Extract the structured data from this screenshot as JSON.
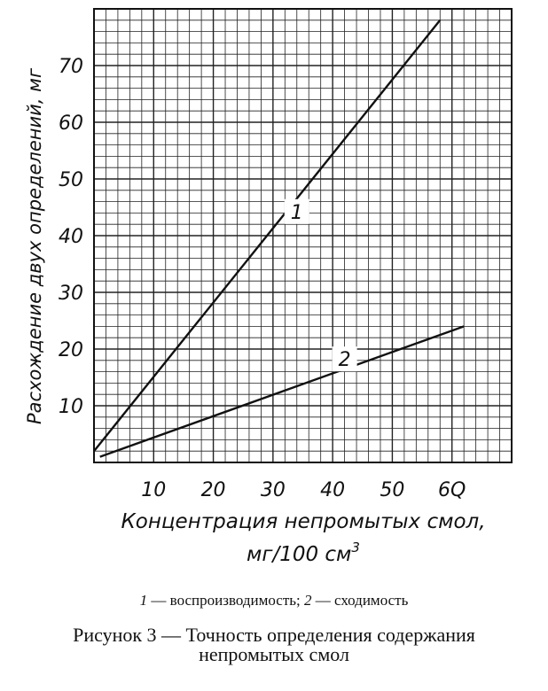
{
  "chart_data": {
    "type": "line",
    "xlabel": "Концентрация непромытых смол,",
    "xlabel_unit": "мг/100 см",
    "xlabel_unit_sup": "3",
    "ylabel": "Расхождение двух определений, мг",
    "x_ticks": [
      "10",
      "20",
      "30",
      "40",
      "50",
      "6Q"
    ],
    "y_ticks": [
      "10",
      "20",
      "30",
      "40",
      "50",
      "60",
      "70"
    ],
    "xlim": [
      0,
      70
    ],
    "ylim": [
      0,
      80
    ],
    "grid": true,
    "series": [
      {
        "name": "1",
        "x": [
          0,
          58
        ],
        "y": [
          2,
          78
        ]
      },
      {
        "name": "2",
        "x": [
          1,
          62
        ],
        "y": [
          1,
          24
        ]
      }
    ],
    "legend_parts": [
      {
        "num": "1",
        "text": " — воспроизводимость; "
      },
      {
        "num": "2",
        "text": " — сходимость"
      }
    ],
    "caption": [
      "Рисунок 3 — Точность определения содержания",
      "непромытых смол"
    ]
  }
}
